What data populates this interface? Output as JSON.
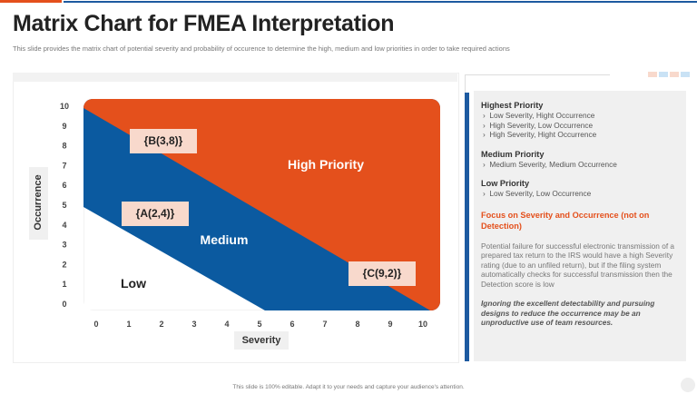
{
  "title": "Matrix Chart for FMEA Interpretation",
  "subtitle": "This slide provides the matrix chart of potential severity and probability of occurence to determine the high, medium and low priorities in order to take required actions",
  "colors": {
    "high": "#e4501c",
    "medium": "#0b5aa0",
    "low": "#ffffff",
    "point_label_bg": "#f8d9cc"
  },
  "chart": {
    "xlabel": "Severity",
    "ylabel": "Occurrence",
    "x_ticks": [
      "0",
      "1",
      "2",
      "3",
      "4",
      "5",
      "6",
      "7",
      "8",
      "9",
      "10"
    ],
    "y_ticks": [
      "0",
      "1",
      "2",
      "3",
      "4",
      "5",
      "6",
      "7",
      "8",
      "9",
      "10"
    ],
    "zones": {
      "high": "High Priority",
      "medium": "Medium",
      "low": "Low"
    },
    "points": [
      {
        "label": "{B(3,8)}",
        "x": 3,
        "y": 8
      },
      {
        "label": "{A(2,4)}",
        "x": 2,
        "y": 4
      },
      {
        "label": "{C(9,2)}",
        "x": 9,
        "y": 2
      }
    ]
  },
  "panel": {
    "highest": {
      "title": "Highest Priority",
      "items": [
        "Low Severity, Hight Occurrence",
        "High Severity, Low Occurrence",
        "High Severity, Hight Occurrence"
      ]
    },
    "medium": {
      "title": "Medium Priority",
      "items": [
        "Medium Severity, Medium Occurrence"
      ]
    },
    "low": {
      "title": "Low Priority",
      "items": [
        "Low Severity, Low Occurrence"
      ]
    },
    "focus": "Focus on Severity  and Occurrence (not on Detection)",
    "paragraph": "Potential failure for successful electronic transmission of a prepared tax return to the IRS would have a high Severity rating (due to an unfiled return), but if the filing system automatically checks for successful transmission then the Detection score is low",
    "note": "Ignoring the excellent detectability and pursuing designs to reduce the occurrence may be an unproductive use of team resources."
  },
  "footer": "This slide is 100% editable. Adapt it to your needs and capture your audience's attention."
}
